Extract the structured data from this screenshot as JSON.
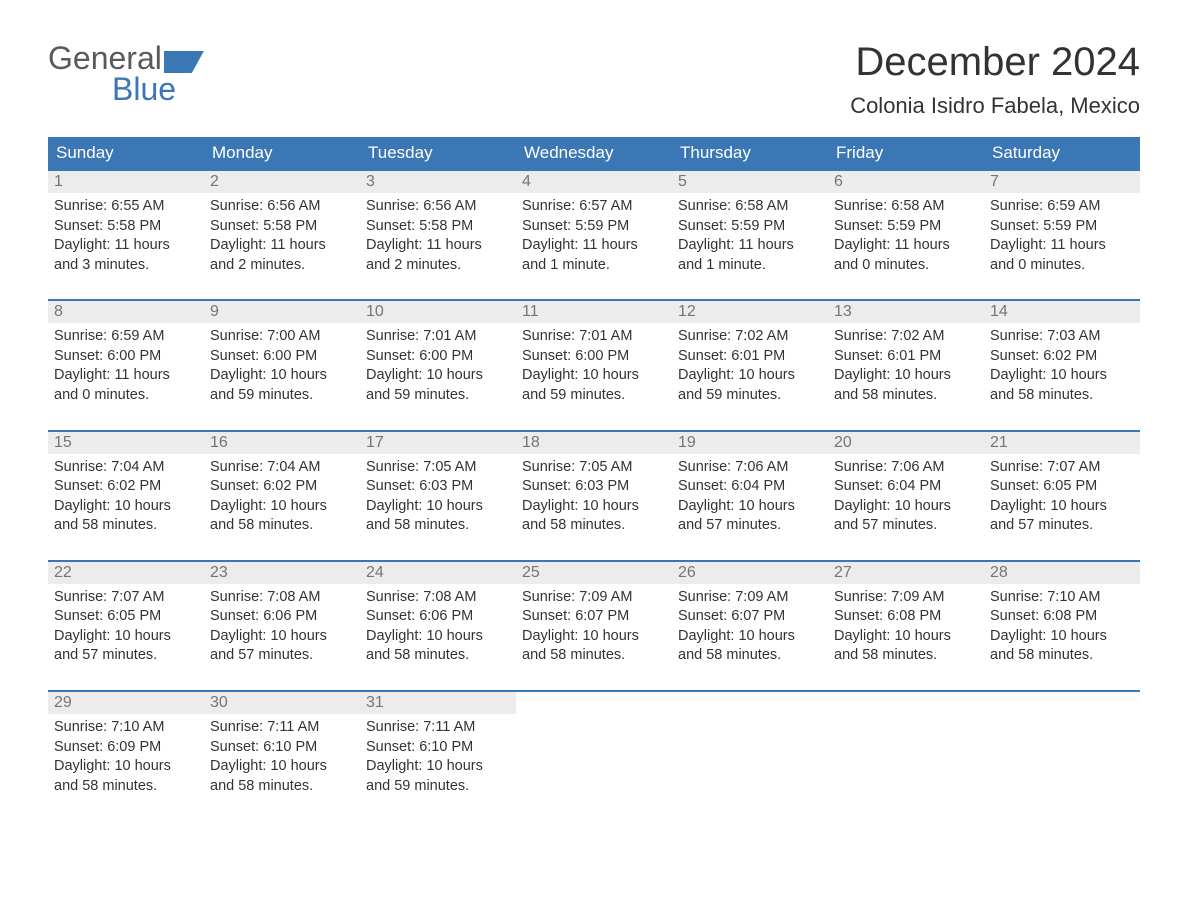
{
  "logo": {
    "top": "General",
    "bottom": "Blue"
  },
  "title": "December 2024",
  "location": "Colonia Isidro Fabela, Mexico",
  "colors": {
    "brand_blue": "#3b77b5",
    "header_text": "#ffffff",
    "day_number_bg": "#ececec",
    "day_number_text": "#757575",
    "body_text": "#333333",
    "logo_gray": "#5a5a5a"
  },
  "weekdays": [
    "Sunday",
    "Monday",
    "Tuesday",
    "Wednesday",
    "Thursday",
    "Friday",
    "Saturday"
  ],
  "weeks": [
    [
      {
        "n": "1",
        "sunrise": "6:55 AM",
        "sunset": "5:58 PM",
        "dl1": "Daylight: 11 hours",
        "dl2": "and 3 minutes."
      },
      {
        "n": "2",
        "sunrise": "6:56 AM",
        "sunset": "5:58 PM",
        "dl1": "Daylight: 11 hours",
        "dl2": "and 2 minutes."
      },
      {
        "n": "3",
        "sunrise": "6:56 AM",
        "sunset": "5:58 PM",
        "dl1": "Daylight: 11 hours",
        "dl2": "and 2 minutes."
      },
      {
        "n": "4",
        "sunrise": "6:57 AM",
        "sunset": "5:59 PM",
        "dl1": "Daylight: 11 hours",
        "dl2": "and 1 minute."
      },
      {
        "n": "5",
        "sunrise": "6:58 AM",
        "sunset": "5:59 PM",
        "dl1": "Daylight: 11 hours",
        "dl2": "and 1 minute."
      },
      {
        "n": "6",
        "sunrise": "6:58 AM",
        "sunset": "5:59 PM",
        "dl1": "Daylight: 11 hours",
        "dl2": "and 0 minutes."
      },
      {
        "n": "7",
        "sunrise": "6:59 AM",
        "sunset": "5:59 PM",
        "dl1": "Daylight: 11 hours",
        "dl2": "and 0 minutes."
      }
    ],
    [
      {
        "n": "8",
        "sunrise": "6:59 AM",
        "sunset": "6:00 PM",
        "dl1": "Daylight: 11 hours",
        "dl2": "and 0 minutes."
      },
      {
        "n": "9",
        "sunrise": "7:00 AM",
        "sunset": "6:00 PM",
        "dl1": "Daylight: 10 hours",
        "dl2": "and 59 minutes."
      },
      {
        "n": "10",
        "sunrise": "7:01 AM",
        "sunset": "6:00 PM",
        "dl1": "Daylight: 10 hours",
        "dl2": "and 59 minutes."
      },
      {
        "n": "11",
        "sunrise": "7:01 AM",
        "sunset": "6:00 PM",
        "dl1": "Daylight: 10 hours",
        "dl2": "and 59 minutes."
      },
      {
        "n": "12",
        "sunrise": "7:02 AM",
        "sunset": "6:01 PM",
        "dl1": "Daylight: 10 hours",
        "dl2": "and 59 minutes."
      },
      {
        "n": "13",
        "sunrise": "7:02 AM",
        "sunset": "6:01 PM",
        "dl1": "Daylight: 10 hours",
        "dl2": "and 58 minutes."
      },
      {
        "n": "14",
        "sunrise": "7:03 AM",
        "sunset": "6:02 PM",
        "dl1": "Daylight: 10 hours",
        "dl2": "and 58 minutes."
      }
    ],
    [
      {
        "n": "15",
        "sunrise": "7:04 AM",
        "sunset": "6:02 PM",
        "dl1": "Daylight: 10 hours",
        "dl2": "and 58 minutes."
      },
      {
        "n": "16",
        "sunrise": "7:04 AM",
        "sunset": "6:02 PM",
        "dl1": "Daylight: 10 hours",
        "dl2": "and 58 minutes."
      },
      {
        "n": "17",
        "sunrise": "7:05 AM",
        "sunset": "6:03 PM",
        "dl1": "Daylight: 10 hours",
        "dl2": "and 58 minutes."
      },
      {
        "n": "18",
        "sunrise": "7:05 AM",
        "sunset": "6:03 PM",
        "dl1": "Daylight: 10 hours",
        "dl2": "and 58 minutes."
      },
      {
        "n": "19",
        "sunrise": "7:06 AM",
        "sunset": "6:04 PM",
        "dl1": "Daylight: 10 hours",
        "dl2": "and 57 minutes."
      },
      {
        "n": "20",
        "sunrise": "7:06 AM",
        "sunset": "6:04 PM",
        "dl1": "Daylight: 10 hours",
        "dl2": "and 57 minutes."
      },
      {
        "n": "21",
        "sunrise": "7:07 AM",
        "sunset": "6:05 PM",
        "dl1": "Daylight: 10 hours",
        "dl2": "and 57 minutes."
      }
    ],
    [
      {
        "n": "22",
        "sunrise": "7:07 AM",
        "sunset": "6:05 PM",
        "dl1": "Daylight: 10 hours",
        "dl2": "and 57 minutes."
      },
      {
        "n": "23",
        "sunrise": "7:08 AM",
        "sunset": "6:06 PM",
        "dl1": "Daylight: 10 hours",
        "dl2": "and 57 minutes."
      },
      {
        "n": "24",
        "sunrise": "7:08 AM",
        "sunset": "6:06 PM",
        "dl1": "Daylight: 10 hours",
        "dl2": "and 58 minutes."
      },
      {
        "n": "25",
        "sunrise": "7:09 AM",
        "sunset": "6:07 PM",
        "dl1": "Daylight: 10 hours",
        "dl2": "and 58 minutes."
      },
      {
        "n": "26",
        "sunrise": "7:09 AM",
        "sunset": "6:07 PM",
        "dl1": "Daylight: 10 hours",
        "dl2": "and 58 minutes."
      },
      {
        "n": "27",
        "sunrise": "7:09 AM",
        "sunset": "6:08 PM",
        "dl1": "Daylight: 10 hours",
        "dl2": "and 58 minutes."
      },
      {
        "n": "28",
        "sunrise": "7:10 AM",
        "sunset": "6:08 PM",
        "dl1": "Daylight: 10 hours",
        "dl2": "and 58 minutes."
      }
    ],
    [
      {
        "n": "29",
        "sunrise": "7:10 AM",
        "sunset": "6:09 PM",
        "dl1": "Daylight: 10 hours",
        "dl2": "and 58 minutes."
      },
      {
        "n": "30",
        "sunrise": "7:11 AM",
        "sunset": "6:10 PM",
        "dl1": "Daylight: 10 hours",
        "dl2": "and 58 minutes."
      },
      {
        "n": "31",
        "sunrise": "7:11 AM",
        "sunset": "6:10 PM",
        "dl1": "Daylight: 10 hours",
        "dl2": "and 59 minutes."
      },
      {
        "empty": true
      },
      {
        "empty": true
      },
      {
        "empty": true
      },
      {
        "empty": true
      }
    ]
  ],
  "labels": {
    "sunrise_prefix": "Sunrise: ",
    "sunset_prefix": "Sunset: "
  }
}
